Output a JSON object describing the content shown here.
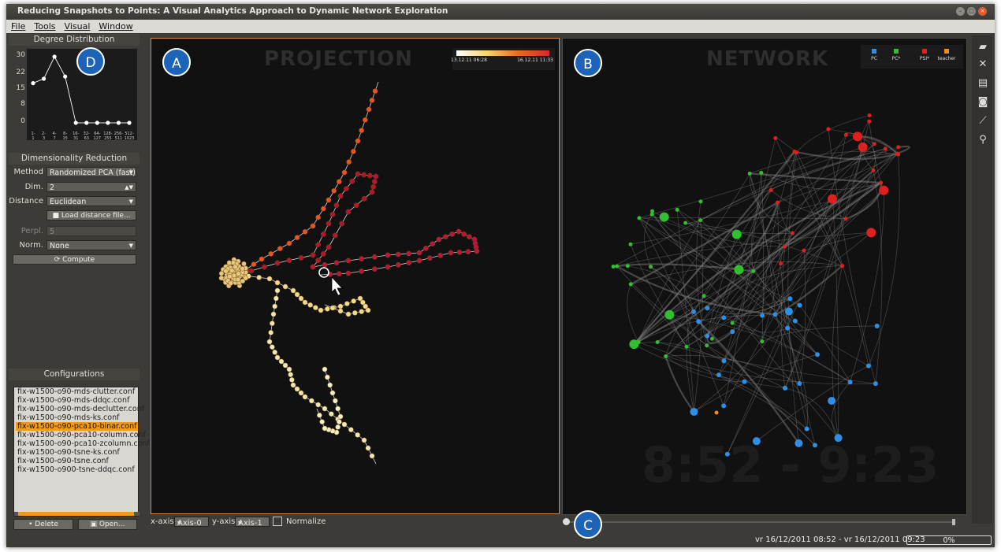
{
  "window": {
    "title": "Reducing Snapshots to Points: A Visual Analytics Approach to Dynamic Network Exploration"
  },
  "menu": [
    "File",
    "Tools",
    "Visual",
    "Window"
  ],
  "degree_panel": {
    "title": "Degree Distribution",
    "y_ticks": [
      "30",
      "22",
      "15",
      "8",
      "0"
    ],
    "x_ticks": [
      "1-\n1",
      "2-\n3",
      "4-\n7",
      "8-\n15",
      "16-\n31",
      "32-\n63",
      "64-\n127",
      "128-\n255",
      "256-\n511",
      "512-\n1023"
    ]
  },
  "chart_data": {
    "type": "line",
    "title": "Degree Distribution",
    "categories": [
      "1-1",
      "2-3",
      "4-7",
      "8-15",
      "16-31",
      "32-63",
      "64-127",
      "128-255",
      "256-511",
      "512-1023"
    ],
    "values": [
      18,
      20,
      30,
      21,
      0,
      0,
      0,
      0,
      0,
      0
    ],
    "ylim": [
      0,
      30
    ],
    "grid": false
  },
  "dim_panel": {
    "title": "Dimensionality Reduction",
    "method_label": "Method",
    "method_value": "Randomized PCA (fast)",
    "dim_label": "Dim.",
    "dim_value": "2",
    "distance_label": "Distance",
    "distance_value": "Euclidean",
    "load_button": "Load distance file...",
    "perpl_label": "Perpl.",
    "perpl_value": "5",
    "norm_label": "Norm.",
    "norm_value": "None",
    "compute_button": "Compute"
  },
  "config_panel": {
    "title": "Configurations",
    "items": [
      "fix-w1500-o90-mds-clutter.conf",
      "fix-w1500-o90-mds-ddqc.conf",
      "fix-w1500-o90-mds-declutter.conf",
      "fix-w1500-o90-mds-ks.conf",
      "fix-w1500-o90-pca10-binar.conf",
      "fix-w1500-o90-pca10-column.conf",
      "fix-w1500-o90-pca10-zcolumn.conf",
      "fix-w1500-o90-tsne-ks.conf",
      "fix-w1500-o90-tsne.conf",
      "fix-w1500-o900-tsne-ddqc.conf"
    ],
    "selected_index": 4,
    "delete_button": "Delete",
    "open_button": "Open..."
  },
  "projection": {
    "title": "PROJECTION",
    "time_start": "13.12.11 06:28",
    "time_end": "16.12.11 11:33",
    "gradient": [
      "#fffbe0",
      "#f6c64a",
      "#e8501e",
      "#a3102e"
    ],
    "accent": "#e0893f"
  },
  "network": {
    "title": "NETWORK",
    "legend": [
      {
        "label": "PC",
        "color": "#2e8fe6"
      },
      {
        "label": "PC*",
        "color": "#2fbf2f"
      },
      {
        "label": "PSI*",
        "color": "#e0201e"
      },
      {
        "label": "teacher",
        "color": "#f08a1a"
      }
    ],
    "timestamp": "8:52 - 9:23"
  },
  "labels": {
    "a": "A",
    "b": "B",
    "c": "C",
    "d": "D"
  },
  "axis_controls": {
    "x_label": "x-axis",
    "x_value": "Axis-0",
    "y_label": "y-axis",
    "y_value": "Axis-1",
    "normalize_label": "Normalize"
  },
  "status": {
    "range": "vr 16/12/2011 08:52 - vr 16/12/2011 09:23",
    "progress": "0%"
  },
  "right_toolbar": [
    "folder-icon",
    "tools-icon",
    "layers-icon",
    "camera-icon",
    "magic-wand-icon",
    "wrench-icon"
  ]
}
